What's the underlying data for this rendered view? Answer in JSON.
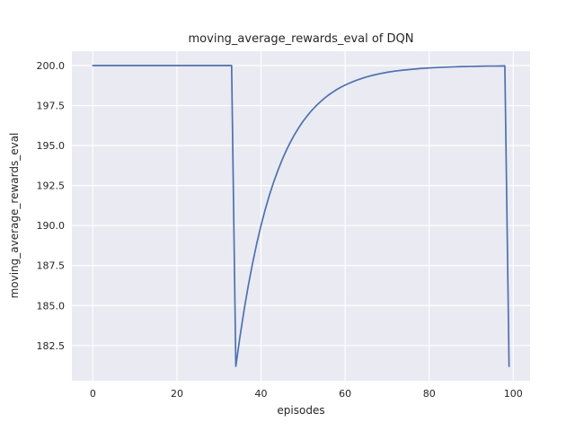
{
  "chart_data": {
    "type": "line",
    "title": "moving_average_rewards_eval of DQN",
    "xlabel": "episodes",
    "ylabel": "moving_average_rewards_eval",
    "xlim": [
      -5,
      104
    ],
    "ylim": [
      180.3,
      200.9
    ],
    "xticks": [
      0,
      20,
      40,
      60,
      80,
      100
    ],
    "xtick_labels": [
      "0",
      "20",
      "40",
      "60",
      "80",
      "100"
    ],
    "yticks": [
      182.5,
      185.0,
      187.5,
      190.0,
      192.5,
      195.0,
      197.5,
      200.0
    ],
    "ytick_labels": [
      "182.5",
      "185.0",
      "187.5",
      "190.0",
      "192.5",
      "195.0",
      "197.5",
      "200.0"
    ],
    "grid": true,
    "legend": "none",
    "style": {
      "plot_background": "#eaeaf2",
      "grid_color": "#ffffff",
      "line_color": "#4c72b0",
      "tick_color": "#262626",
      "figure_background": "#ffffff"
    },
    "series": [
      {
        "name": "moving_average_rewards_eval",
        "x": [
          0,
          5,
          10,
          15,
          20,
          25,
          30,
          33,
          34,
          35,
          36,
          37,
          38,
          39,
          40,
          41,
          42,
          43,
          44,
          45,
          46,
          47,
          48,
          49,
          50,
          51,
          52,
          53,
          54,
          55,
          56,
          57,
          58,
          59,
          60,
          61,
          62,
          63,
          64,
          65,
          66,
          67,
          68,
          70,
          72,
          74,
          76,
          78,
          80,
          82,
          84,
          86,
          88,
          90,
          92,
          94,
          96,
          98,
          99
        ],
        "y": [
          200,
          200,
          200,
          200,
          200,
          200,
          200,
          200,
          181.2,
          183.08,
          184.77,
          186.29,
          187.66,
          188.9,
          190.01,
          191.01,
          191.91,
          192.72,
          193.44,
          194.1,
          194.69,
          195.22,
          195.7,
          196.13,
          196.52,
          196.86,
          197.18,
          197.46,
          197.71,
          197.94,
          198.15,
          198.33,
          198.5,
          198.65,
          198.78,
          198.9,
          199.01,
          199.11,
          199.2,
          199.28,
          199.35,
          199.42,
          199.48,
          199.58,
          199.66,
          199.72,
          199.77,
          199.82,
          199.85,
          199.88,
          199.9,
          199.92,
          199.94,
          199.95,
          199.96,
          199.97,
          199.97,
          199.98,
          181.2
        ]
      }
    ]
  }
}
